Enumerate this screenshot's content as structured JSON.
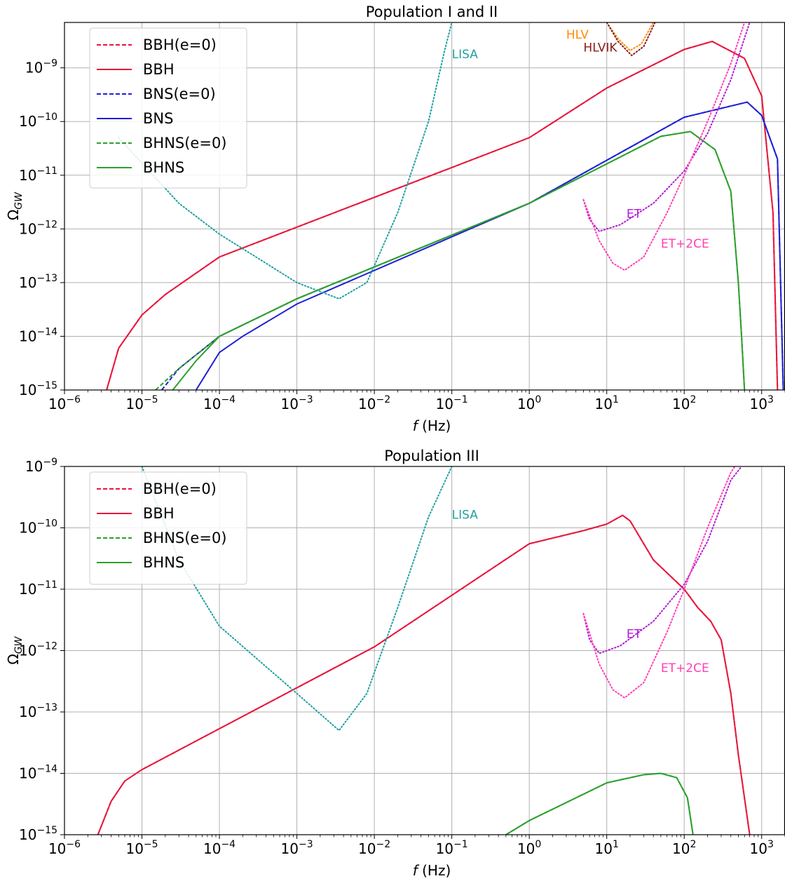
{
  "chart_data": [
    {
      "type": "line",
      "title": "Population I and II",
      "xlabel": "f (Hz)",
      "ylabel": "Ω_GW",
      "xscale": "log",
      "yscale": "log",
      "xlim": [
        1e-06,
        2000
      ],
      "ylim": [
        1e-15,
        7e-09
      ],
      "grid": true,
      "legend_position": "top-left",
      "x_ticks": [
        -6,
        -5,
        -4,
        -3,
        -2,
        -1,
        0,
        1,
        2,
        3
      ],
      "y_ticks": [
        -15,
        -14,
        -13,
        -12,
        -11,
        -10,
        -9
      ],
      "series": [
        {
          "name": "BBH(e=0)",
          "color": "#e8173c",
          "style": "dashed",
          "legend": true,
          "points": [
            [
              3.5e-06,
              1e-15
            ],
            [
              5e-06,
              6e-15
            ],
            [
              1e-05,
              2.5e-14
            ],
            [
              2e-05,
              6e-14
            ],
            [
              0.0001,
              3e-13
            ],
            [
              1,
              5e-11
            ],
            [
              10,
              4.2e-10
            ],
            [
              100,
              2.2e-09
            ],
            [
              230,
              3.1e-09
            ],
            [
              600,
              1.5e-09
            ],
            [
              1000,
              3e-10
            ],
            [
              1400,
              2e-12
            ],
            [
              1600,
              1e-15
            ]
          ]
        },
        {
          "name": "BBH",
          "color": "#e8173c",
          "style": "solid",
          "legend": true,
          "points": [
            [
              3.5e-06,
              1e-15
            ],
            [
              5e-06,
              6e-15
            ],
            [
              1e-05,
              2.5e-14
            ],
            [
              2e-05,
              6e-14
            ],
            [
              0.0001,
              3e-13
            ],
            [
              1,
              5e-11
            ],
            [
              10,
              4.2e-10
            ],
            [
              100,
              2.2e-09
            ],
            [
              230,
              3.1e-09
            ],
            [
              600,
              1.5e-09
            ],
            [
              1000,
              3e-10
            ],
            [
              1400,
              2e-12
            ],
            [
              1600,
              1e-15
            ]
          ]
        },
        {
          "name": "BNS(e=0)",
          "color": "#1f1fd6",
          "style": "dashed",
          "legend": true,
          "points": [
            [
              1.8e-05,
              1e-15
            ],
            [
              3e-05,
              2.5e-15
            ],
            [
              0.0001,
              1e-14
            ],
            [
              0.001,
              5e-14
            ],
            [
              1,
              3e-12
            ],
            [
              100,
              1.2e-10
            ],
            [
              650,
              2.3e-10
            ],
            [
              1000,
              1.3e-10
            ],
            [
              1600,
              2e-11
            ],
            [
              1900,
              1e-15
            ]
          ]
        },
        {
          "name": "BNS",
          "color": "#1f1fd6",
          "style": "solid",
          "legend": true,
          "points": [
            [
              5e-05,
              1e-15
            ],
            [
              0.0001,
              5e-15
            ],
            [
              0.0002,
              1e-14
            ],
            [
              0.001,
              4e-14
            ],
            [
              1,
              3e-12
            ],
            [
              100,
              1.2e-10
            ],
            [
              650,
              2.3e-10
            ],
            [
              1000,
              1.3e-10
            ],
            [
              1600,
              2e-11
            ],
            [
              1900,
              1e-15
            ]
          ]
        },
        {
          "name": "BHNS(e=0)",
          "color": "#2ca02c",
          "style": "dashed",
          "legend": true,
          "points": [
            [
              1.5e-05,
              1e-15
            ],
            [
              3e-05,
              2.5e-15
            ],
            [
              0.0001,
              1e-14
            ],
            [
              0.001,
              5e-14
            ],
            [
              1,
              3e-12
            ],
            [
              50,
              5.3e-11
            ],
            [
              120,
              6.5e-11
            ],
            [
              250,
              3e-11
            ],
            [
              400,
              5e-12
            ],
            [
              500,
              1e-13
            ],
            [
              550,
              1e-14
            ],
            [
              600,
              1e-15
            ]
          ]
        },
        {
          "name": "BHNS",
          "color": "#2ca02c",
          "style": "solid",
          "legend": true,
          "points": [
            [
              2.5e-05,
              1e-15
            ],
            [
              5e-05,
              3.5e-15
            ],
            [
              0.0001,
              1e-14
            ],
            [
              0.001,
              5e-14
            ],
            [
              1,
              3e-12
            ],
            [
              50,
              5.3e-11
            ],
            [
              120,
              6.5e-11
            ],
            [
              250,
              3e-11
            ],
            [
              400,
              5e-12
            ],
            [
              500,
              1e-13
            ],
            [
              550,
              1e-14
            ],
            [
              600,
              1e-15
            ]
          ]
        },
        {
          "name": "LISA",
          "color": "#20a0a0",
          "style": "dotted",
          "legend": false,
          "points": [
            [
              5e-06,
              5e-11
            ],
            [
              3e-05,
              3e-12
            ],
            [
              0.0001,
              8e-13
            ],
            [
              0.001,
              1e-13
            ],
            [
              0.0035,
              5e-14
            ],
            [
              0.008,
              1e-13
            ],
            [
              0.02,
              2e-12
            ],
            [
              0.05,
              1e-10
            ],
            [
              0.08,
              2e-09
            ],
            [
              0.1,
              7e-09
            ]
          ]
        },
        {
          "name": "ET",
          "color": "#b31bd6",
          "style": "dotted",
          "legend": false,
          "points": [
            [
              5,
              3.5e-12
            ],
            [
              6,
              1.5e-12
            ],
            [
              8,
              9e-13
            ],
            [
              15,
              1.2e-12
            ],
            [
              40,
              3e-12
            ],
            [
              100,
              1.2e-11
            ],
            [
              200,
              6e-11
            ],
            [
              400,
              6e-10
            ],
            [
              700,
              7e-09
            ]
          ]
        },
        {
          "name": "ET+2CE",
          "color": "#ff3fb6",
          "style": "dotted",
          "legend": false,
          "points": [
            [
              5,
              3.5e-12
            ],
            [
              8,
              6e-13
            ],
            [
              12,
              2.3e-13
            ],
            [
              17,
              1.7e-13
            ],
            [
              30,
              3e-13
            ],
            [
              60,
              2e-12
            ],
            [
              100,
              1e-11
            ],
            [
              200,
              1e-10
            ],
            [
              400,
              1.2e-09
            ],
            [
              600,
              7e-09
            ]
          ]
        },
        {
          "name": "HLV",
          "color": "#ff8c00",
          "style": "dotted",
          "legend": false,
          "points": [
            [
              10,
              7e-09
            ],
            [
              14,
              3.5e-09
            ],
            [
              20,
              2.1e-09
            ],
            [
              28,
              2.8e-09
            ],
            [
              40,
              7e-09
            ]
          ]
        },
        {
          "name": "HLVIK",
          "color": "#8b1a1a",
          "style": "dotted",
          "legend": false,
          "points": [
            [
              10,
              7e-09
            ],
            [
              14,
              3.1e-09
            ],
            [
              21,
              1.7e-09
            ],
            [
              30,
              2.5e-09
            ],
            [
              42,
              7e-09
            ]
          ]
        }
      ],
      "annotations": [
        {
          "text": "LISA",
          "x": 0.1,
          "y": 1.5e-09,
          "color": "#20a0a0"
        },
        {
          "text": "HLV",
          "x": 3,
          "y": 3.5e-09,
          "color": "#ff8c00"
        },
        {
          "text": "HLVIK",
          "x": 5,
          "y": 2e-09,
          "color": "#8b1a1a"
        },
        {
          "text": "ET",
          "x": 18,
          "y": 1.6e-12,
          "color": "#b31bd6"
        },
        {
          "text": "ET+2CE",
          "x": 50,
          "y": 4.5e-13,
          "color": "#ff3fb6"
        }
      ]
    },
    {
      "type": "line",
      "title": "Population III",
      "xlabel": "f (Hz)",
      "ylabel": "Ω_GW",
      "xscale": "log",
      "yscale": "log",
      "xlim": [
        1e-06,
        2000
      ],
      "ylim": [
        1e-15,
        1e-09
      ],
      "grid": true,
      "legend_position": "top-left",
      "x_ticks": [
        -6,
        -5,
        -4,
        -3,
        -2,
        -1,
        0,
        1,
        2,
        3
      ],
      "y_ticks": [
        -15,
        -14,
        -13,
        -12,
        -11,
        -10,
        -9
      ],
      "series": [
        {
          "name": "BBH(e=0)",
          "color": "#e8173c",
          "style": "dashed",
          "legend": true,
          "points": [
            [
              2.7e-06,
              1e-15
            ],
            [
              4e-06,
              3.5e-15
            ],
            [
              6e-06,
              7.5e-15
            ],
            [
              1e-05,
              1.15e-14
            ],
            [
              0.01,
              1.15e-12
            ],
            [
              1,
              5.5e-11
            ],
            [
              5,
              9e-11
            ],
            [
              10,
              1.15e-10
            ],
            [
              16,
              1.6e-10
            ],
            [
              20,
              1.3e-10
            ],
            [
              40,
              3e-11
            ],
            [
              100,
              1e-11
            ],
            [
              150,
              5e-12
            ],
            [
              220,
              3e-12
            ],
            [
              300,
              1.5e-12
            ],
            [
              400,
              2e-13
            ],
            [
              500,
              2e-14
            ],
            [
              700,
              1e-15
            ]
          ]
        },
        {
          "name": "BBH",
          "color": "#e8173c",
          "style": "solid",
          "legend": true,
          "points": [
            [
              2.7e-06,
              1e-15
            ],
            [
              4e-06,
              3.5e-15
            ],
            [
              6e-06,
              7.5e-15
            ],
            [
              1e-05,
              1.15e-14
            ],
            [
              0.01,
              1.15e-12
            ],
            [
              1,
              5.5e-11
            ],
            [
              5,
              9e-11
            ],
            [
              10,
              1.15e-10
            ],
            [
              16,
              1.6e-10
            ],
            [
              20,
              1.3e-10
            ],
            [
              40,
              3e-11
            ],
            [
              100,
              1e-11
            ],
            [
              150,
              5e-12
            ],
            [
              220,
              3e-12
            ],
            [
              300,
              1.5e-12
            ],
            [
              400,
              2e-13
            ],
            [
              500,
              2e-14
            ],
            [
              700,
              1e-15
            ]
          ]
        },
        {
          "name": "BHNS(e=0)",
          "color": "#2ca02c",
          "style": "dashed",
          "legend": true,
          "points": [
            [
              0.5,
              1e-15
            ],
            [
              1,
              1.7e-15
            ],
            [
              10,
              7e-15
            ],
            [
              30,
              9.5e-15
            ],
            [
              50,
              1e-14
            ],
            [
              80,
              8.5e-15
            ],
            [
              110,
              4e-15
            ],
            [
              130,
              1e-15
            ]
          ]
        },
        {
          "name": "BHNS",
          "color": "#2ca02c",
          "style": "solid",
          "legend": true,
          "points": [
            [
              0.5,
              1e-15
            ],
            [
              1,
              1.7e-15
            ],
            [
              10,
              7e-15
            ],
            [
              30,
              9.5e-15
            ],
            [
              50,
              1e-14
            ],
            [
              80,
              8.5e-15
            ],
            [
              110,
              4e-15
            ],
            [
              130,
              1e-15
            ]
          ]
        },
        {
          "name": "LISA",
          "color": "#20a0a0",
          "style": "dotted",
          "legend": false,
          "points": [
            [
              1e-05,
              1e-09
            ],
            [
              3e-05,
              3e-11
            ],
            [
              0.0001,
              2.5e-12
            ],
            [
              0.001,
              2e-13
            ],
            [
              0.0035,
              5e-14
            ],
            [
              0.008,
              2e-13
            ],
            [
              0.02,
              5e-12
            ],
            [
              0.05,
              1.5e-10
            ],
            [
              0.1,
              1e-09
            ]
          ]
        },
        {
          "name": "ET",
          "color": "#b31bd6",
          "style": "dotted",
          "legend": false,
          "points": [
            [
              5,
              4e-12
            ],
            [
              6,
              1.5e-12
            ],
            [
              8,
              9e-13
            ],
            [
              15,
              1.2e-12
            ],
            [
              40,
              3e-12
            ],
            [
              100,
              1.2e-11
            ],
            [
              200,
              6e-11
            ],
            [
              400,
              6e-10
            ],
            [
              550,
              1e-09
            ]
          ]
        },
        {
          "name": "ET+2CE",
          "color": "#ff3fb6",
          "style": "dotted",
          "legend": false,
          "points": [
            [
              5,
              4e-12
            ],
            [
              8,
              6e-13
            ],
            [
              12,
              2.3e-13
            ],
            [
              17,
              1.7e-13
            ],
            [
              30,
              3e-13
            ],
            [
              60,
              2e-12
            ],
            [
              100,
              1e-11
            ],
            [
              200,
              1e-10
            ],
            [
              400,
              8e-10
            ],
            [
              450,
              1e-09
            ]
          ]
        }
      ],
      "annotations": [
        {
          "text": "LISA",
          "x": 0.1,
          "y": 1.4e-10,
          "color": "#20a0a0"
        },
        {
          "text": "ET",
          "x": 18,
          "y": 1.6e-12,
          "color": "#b31bd6"
        },
        {
          "text": "ET+2CE",
          "x": 50,
          "y": 4.5e-13,
          "color": "#ff3fb6"
        }
      ]
    }
  ]
}
